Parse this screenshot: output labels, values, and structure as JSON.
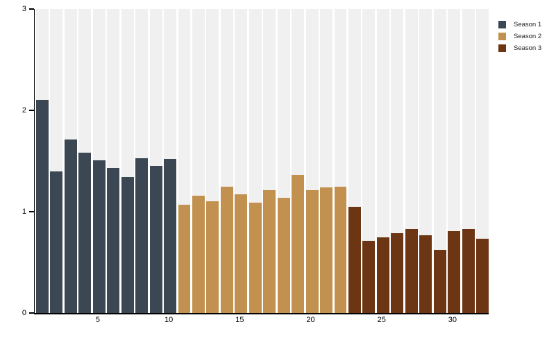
{
  "chart_data": {
    "type": "bar",
    "title": "",
    "xlabel": "",
    "ylabel": "",
    "ylim": [
      0,
      3
    ],
    "yticks": [
      "0",
      "1",
      "2",
      "3"
    ],
    "ytick_values": [
      0,
      1,
      2,
      3
    ],
    "xticks": [
      "5",
      "10",
      "15",
      "20",
      "25",
      "30"
    ],
    "xtick_values": [
      5,
      10,
      15,
      20,
      25,
      30
    ],
    "total_bars": 32,
    "grid": "off",
    "background_band_color": "#f0f0f0",
    "axis_color": "#000000",
    "legend_position": "top-right",
    "series": [
      {
        "name": "Season 1",
        "color": "#3b4854",
        "episodes": [
          1,
          2,
          3,
          4,
          5,
          6,
          7,
          8,
          9,
          10
        ],
        "values": [
          2.1,
          1.4,
          1.71,
          1.58,
          1.51,
          1.43,
          1.34,
          1.53,
          1.45,
          1.52
        ]
      },
      {
        "name": "Season 2",
        "color": "#c2914f",
        "episodes": [
          11,
          12,
          13,
          14,
          15,
          16,
          17,
          18,
          19,
          20,
          21,
          22
        ],
        "values": [
          1.07,
          1.16,
          1.1,
          1.25,
          1.17,
          1.09,
          1.21,
          1.14,
          1.36,
          1.21,
          1.24,
          1.25
        ]
      },
      {
        "name": "Season 3",
        "color": "#6c3513",
        "episodes": [
          23,
          24,
          25,
          26,
          27,
          28,
          29,
          30,
          31,
          32
        ],
        "values": [
          1.05,
          0.71,
          0.75,
          0.79,
          0.83,
          0.77,
          0.62,
          0.81,
          0.83,
          0.73
        ]
      }
    ]
  },
  "legend": {
    "items": [
      {
        "label": "Season 1",
        "color": "#3b4854"
      },
      {
        "label": "Season 2",
        "color": "#c2914f"
      },
      {
        "label": "Season 3",
        "color": "#6c3513"
      }
    ]
  }
}
